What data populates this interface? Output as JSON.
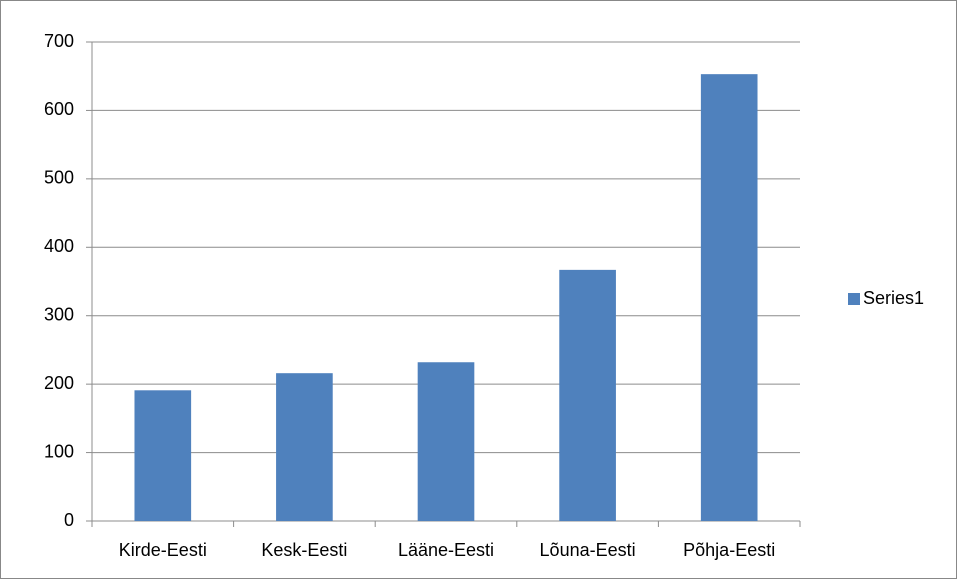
{
  "chart_data": {
    "type": "bar",
    "categories": [
      "Kirde-Eesti",
      "Kesk-Eesti",
      "Lääne-Eesti",
      "Lõuna-Eesti",
      "Põhja-Eesti"
    ],
    "series": [
      {
        "name": "Series1",
        "color": "#4f81bd",
        "values": [
          191,
          216,
          232,
          367,
          653
        ]
      }
    ],
    "ylim": [
      0,
      700
    ],
    "yticks": [
      0,
      100,
      200,
      300,
      400,
      500,
      600,
      700
    ],
    "grid": true,
    "legend": "right"
  }
}
